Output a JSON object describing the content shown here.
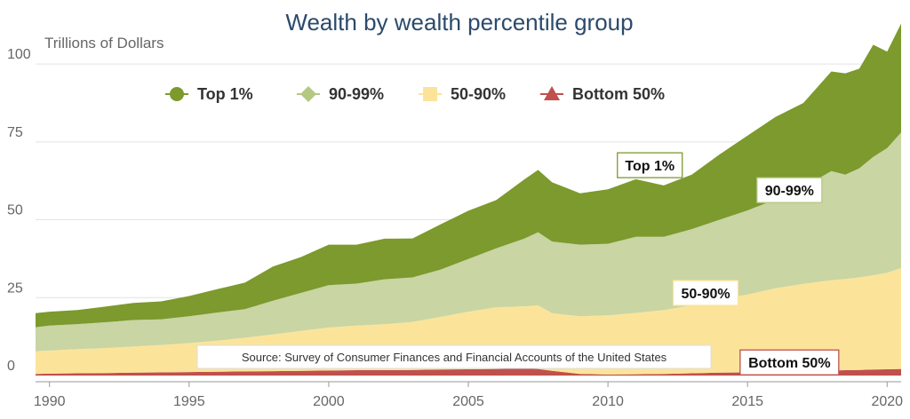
{
  "chart_data": {
    "type": "area",
    "stacked": true,
    "title": "Wealth by wealth percentile group",
    "ylabel": "Trillions of Dollars",
    "xlabel": "",
    "xlim": [
      1989.5,
      2020.5
    ],
    "ylim": [
      -2,
      112
    ],
    "yticks": [
      0,
      25,
      50,
      75,
      100
    ],
    "xticks": [
      1990,
      1995,
      2000,
      2005,
      2010,
      2015,
      2020
    ],
    "grid": true,
    "legend_position": "top-center",
    "x": [
      1989.5,
      1990,
      1991,
      1992,
      1993,
      1994,
      1995,
      1996,
      1997,
      1998,
      1999,
      2000,
      2001,
      2002,
      2003,
      2004,
      2005,
      2006,
      2007,
      2007.5,
      2008,
      2009,
      2010,
      2011,
      2012,
      2013,
      2014,
      2015,
      2016,
      2017,
      2018,
      2018.5,
      2019,
      2019.5,
      2020,
      2020.5
    ],
    "series": [
      {
        "name": "Bottom 50%",
        "color": "#c0504d",
        "values": [
          0.5,
          0.6,
          0.7,
          0.8,
          0.9,
          1.0,
          1.1,
          1.2,
          1.3,
          1.4,
          1.5,
          1.6,
          1.7,
          1.7,
          1.8,
          1.9,
          2.0,
          2.1,
          2.2,
          2.1,
          1.5,
          0.5,
          0.3,
          0.4,
          0.5,
          0.7,
          0.9,
          1.0,
          1.2,
          1.4,
          1.6,
          1.7,
          1.8,
          1.9,
          2.0,
          2.1
        ]
      },
      {
        "name": "50-90%",
        "color": "#fbe49a",
        "values": [
          7.3,
          7.4,
          7.8,
          8.0,
          8.4,
          8.8,
          9.3,
          10.0,
          10.8,
          11.8,
          12.8,
          13.8,
          14.3,
          14.8,
          15.4,
          16.9,
          18.5,
          19.8,
          20.0,
          20.4,
          18.5,
          18.5,
          19.0,
          19.7,
          20.5,
          21.8,
          23.6,
          25.0,
          26.8,
          28.0,
          29.0,
          29.3,
          29.7,
          30.3,
          31.0,
          32.4
        ]
      },
      {
        "name": "90-99%",
        "color": "#c9d5a3",
        "values": [
          7.7,
          8.0,
          8.0,
          8.3,
          8.5,
          8.2,
          8.6,
          9.0,
          9.2,
          10.8,
          12.2,
          13.6,
          13.5,
          14.4,
          14.3,
          15.2,
          16.9,
          18.9,
          21.7,
          23.5,
          23.0,
          23.0,
          23.0,
          24.4,
          23.5,
          24.5,
          25.5,
          27.0,
          28.5,
          31.1,
          35.0,
          33.5,
          35.0,
          38.0,
          40.0,
          43.5
        ]
      },
      {
        "name": "Top 1%",
        "color": "#7c9a2d",
        "values": [
          4.5,
          4.5,
          4.5,
          5.0,
          5.5,
          5.8,
          6.5,
          7.5,
          8.5,
          11.0,
          11.5,
          13.0,
          12.5,
          13.0,
          12.5,
          14.5,
          15.5,
          15.5,
          19.0,
          20.0,
          19.0,
          16.5,
          17.5,
          18.5,
          16.5,
          17.5,
          21.0,
          24.0,
          26.5,
          27.0,
          32.0,
          32.5,
          32.0,
          36.0,
          31.0,
          35.0
        ]
      }
    ],
    "legend": [
      {
        "label": "Top 1%",
        "marker": "circle",
        "color": "#7c9a2d"
      },
      {
        "label": "90-99%",
        "marker": "diamond",
        "color": "#b4c882"
      },
      {
        "label": "50-90%",
        "marker": "square",
        "color": "#fbe49a"
      },
      {
        "label": "Bottom 50%",
        "marker": "triangle",
        "color": "#c0504d"
      }
    ],
    "annotations": [
      {
        "text": "Top 1%",
        "x": 2011.5,
        "y": 67.5,
        "border": "#7c9a2d"
      },
      {
        "text": "90-99%",
        "x": 2016.5,
        "y": 59.5,
        "border": "#b4c882"
      },
      {
        "text": "50-90%",
        "x": 2013.5,
        "y": 26.5,
        "border": "#fbe49a"
      },
      {
        "text": "Bottom 50%",
        "x": 2016.5,
        "y": 4.2,
        "border": "#c0504d"
      }
    ],
    "source": "Source: Survey of Consumer Finances and Financial Accounts of the United States"
  }
}
